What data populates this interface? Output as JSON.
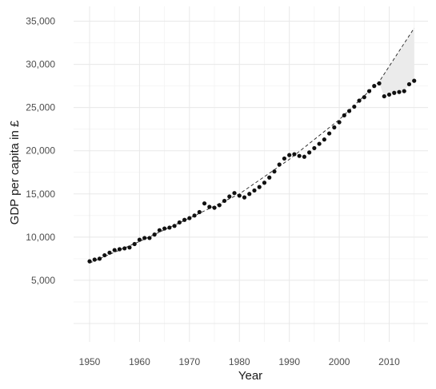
{
  "chart_data": {
    "type": "scatter",
    "xlabel": "Year",
    "ylabel": "GDP per capita in £",
    "xlim": [
      1950,
      2015
    ],
    "ylim": [
      0,
      36000
    ],
    "x_ticks": [
      1950,
      1960,
      1970,
      1980,
      1990,
      2000,
      2010
    ],
    "x_tick_labels": [
      "1950",
      "1960",
      "1970",
      "1980",
      "1990",
      "2000",
      "2010"
    ],
    "y_ticks": [
      5000,
      10000,
      15000,
      20000,
      25000,
      30000,
      35000
    ],
    "y_tick_labels": [
      "5,000",
      "10,000",
      "15,000",
      "20,000",
      "25,000",
      "30,000",
      "35,000"
    ],
    "grid": true,
    "series": [
      {
        "x": [
          1950,
          1951,
          1952,
          1953,
          1954,
          1955,
          1956,
          1957,
          1958,
          1959,
          1960,
          1961,
          1962,
          1963,
          1964,
          1965,
          1966,
          1967,
          1968,
          1969,
          1970,
          1971,
          1972,
          1973,
          1974,
          1975,
          1976,
          1977,
          1978,
          1979,
          1980,
          1981,
          1982,
          1983,
          1984,
          1985,
          1986,
          1987,
          1988,
          1989,
          1990,
          1991,
          1992,
          1993,
          1994,
          1995,
          1996,
          1997,
          1998,
          1999,
          2000,
          2001,
          2002,
          2003,
          2004,
          2005,
          2006,
          2007,
          2008,
          2009,
          2010,
          2011,
          2012,
          2013,
          2014,
          2015
        ],
        "y": [
          7200,
          7400,
          7500,
          7900,
          8200,
          8500,
          8600,
          8700,
          8800,
          9200,
          9700,
          9900,
          9900,
          10300,
          10800,
          11000,
          11100,
          11300,
          11700,
          12000,
          12200,
          12500,
          12900,
          13900,
          13500,
          13400,
          13700,
          14200,
          14700,
          15100,
          14800,
          14600,
          15000,
          15400,
          15800,
          16300,
          16900,
          17600,
          18400,
          19100,
          19500,
          19600,
          19400,
          19300,
          19800,
          20300,
          20800,
          21300,
          22000,
          22700,
          23300,
          24100,
          24600,
          25100,
          25800,
          26200,
          26900,
          27500,
          27800,
          26300,
          26500,
          26700,
          26800,
          26900,
          27700,
          28100
        ]
      }
    ],
    "trend": {
      "x": [
        1950,
        1960,
        1970,
        1980,
        1990,
        2000,
        2008,
        2015
      ],
      "y": [
        7000,
        9500,
        12200,
        15000,
        19000,
        23600,
        28000,
        34200
      ]
    },
    "gap_shading": {
      "from_year": 2008,
      "to_year": 2015,
      "color": "#ebebeb"
    },
    "colors": {
      "points": "#111111",
      "trend": "#222222",
      "gap_fill": "#ebebeb"
    }
  }
}
